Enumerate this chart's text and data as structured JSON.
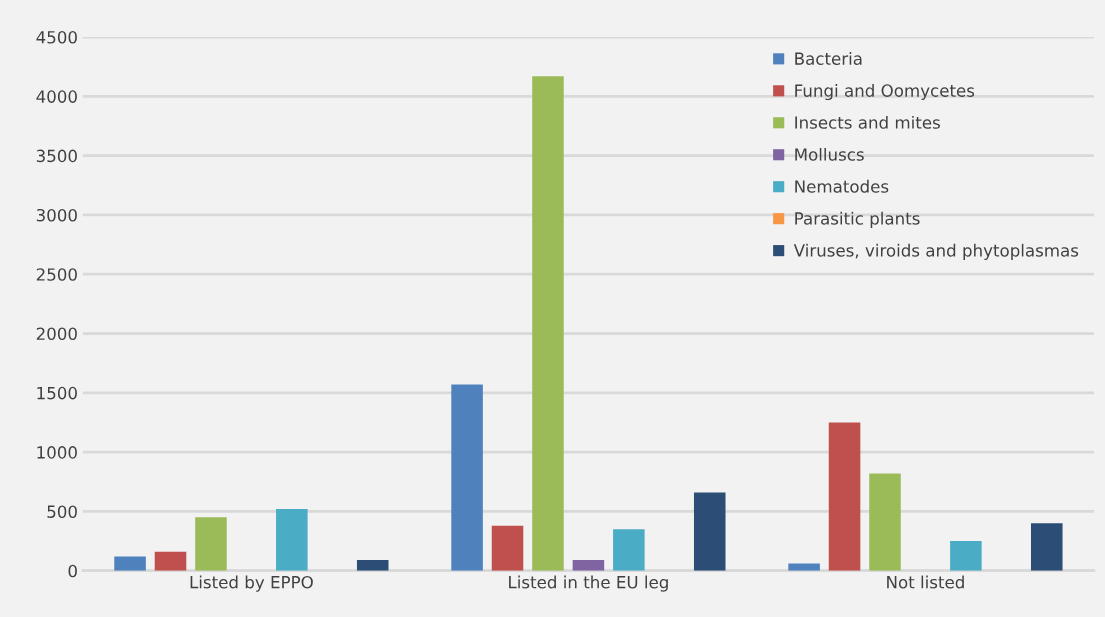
{
  "chart_data": {
    "type": "bar",
    "categories": [
      "Listed by EPPO",
      "Listed in the EU leg",
      "Not listed"
    ],
    "series": [
      {
        "name": "Bacteria",
        "color": "#4f81bd",
        "values": [
          120,
          1570,
          60
        ]
      },
      {
        "name": "Fungi and Oomycetes",
        "color": "#c0504d",
        "values": [
          160,
          380,
          1250
        ]
      },
      {
        "name": "Insects and mites",
        "color": "#9bbb59",
        "values": [
          450,
          4170,
          820
        ]
      },
      {
        "name": "Molluscs",
        "color": "#8064a2",
        "values": [
          0,
          90,
          0
        ]
      },
      {
        "name": "Nematodes",
        "color": "#4bacc6",
        "values": [
          520,
          350,
          250
        ]
      },
      {
        "name": "Parasitic plants",
        "color": "#f79646",
        "values": [
          0,
          0,
          0
        ]
      },
      {
        "name": "Viruses, viroids and phytoplasmas",
        "color": "#2c4d75",
        "values": [
          90,
          660,
          400
        ]
      }
    ],
    "ylim": [
      0,
      4500
    ],
    "yticks": [
      0,
      500,
      1000,
      1500,
      2000,
      2500,
      3000,
      3500,
      4000,
      4500
    ],
    "grid": "y",
    "legend": "top right"
  }
}
